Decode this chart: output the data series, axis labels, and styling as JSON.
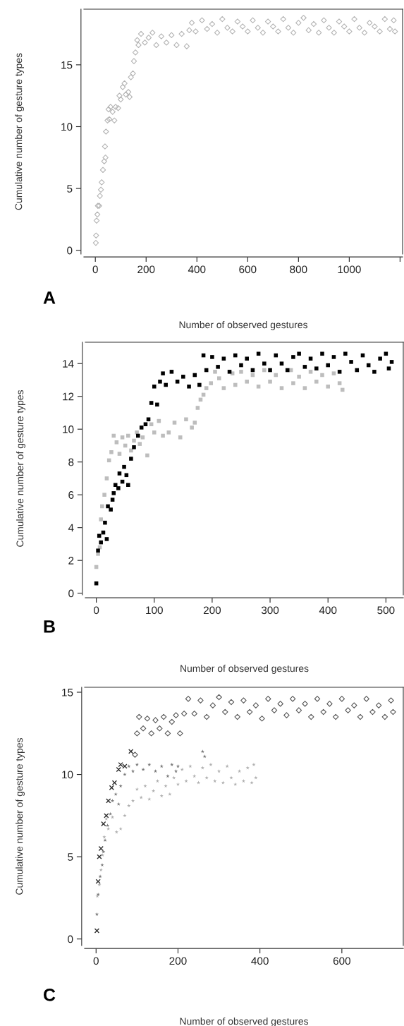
{
  "chart_data": [
    {
      "type": "scatter",
      "xlabel": "Number of observed gestures",
      "ylabel": "Cumulative number of gesture types",
      "annotations": [
        "A"
      ],
      "xlim": [
        -45,
        1210
      ],
      "ylim": [
        -0.3,
        19.5
      ],
      "xticks": [
        0,
        200,
        400,
        600,
        800,
        1000,
        {
          "value": 1200,
          "label": null
        }
      ],
      "yticks": [
        0,
        5,
        10,
        15
      ],
      "grid": false,
      "series": [
        {
          "color": "#b4b4b4",
          "marker": "diamond",
          "x": [
            2,
            3,
            5,
            8,
            10,
            15,
            18,
            22,
            25,
            30,
            35,
            38,
            40,
            42,
            48,
            52,
            55,
            60,
            68,
            75,
            80,
            90,
            95,
            100,
            108,
            115,
            120,
            130,
            135,
            140,
            148,
            152,
            158,
            165,
            170,
            180,
            195,
            210,
            225,
            240,
            260,
            280,
            300,
            320,
            340,
            360,
            370,
            380,
            395,
            420,
            440,
            460,
            480,
            500,
            520,
            540,
            560,
            580,
            600,
            620,
            640,
            660,
            680,
            700,
            720,
            740,
            760,
            780,
            800,
            820,
            840,
            860,
            880,
            900,
            920,
            940,
            960,
            980,
            1000,
            1020,
            1040,
            1060,
            1080,
            1100,
            1120,
            1140,
            1160,
            1175,
            1180
          ],
          "values": [
            0.6,
            1.2,
            2.4,
            2.9,
            3.6,
            3.6,
            4.4,
            4.9,
            5.5,
            6.5,
            7.2,
            8.4,
            7.5,
            9.6,
            10.5,
            11.4,
            10.6,
            11.6,
            11.2,
            10.5,
            11.6,
            11.5,
            12.5,
            12.2,
            13.2,
            13.5,
            12.6,
            12.8,
            12.4,
            14,
            14.3,
            15.3,
            16,
            17,
            16.6,
            17.5,
            16.8,
            17.2,
            17.6,
            16.6,
            17.3,
            16.8,
            17.4,
            16.6,
            17.5,
            16.5,
            17.8,
            18.4,
            17.7,
            18.6,
            17.9,
            18.3,
            17.6,
            18.7,
            18,
            17.7,
            18.5,
            18.1,
            17.7,
            18.6,
            18,
            17.6,
            18.5,
            18.1,
            17.7,
            18.7,
            18,
            17.6,
            18.4,
            18.8,
            17.8,
            18.3,
            17.6,
            18.6,
            18,
            17.6,
            18.5,
            18.1,
            17.7,
            18.7,
            18,
            17.6,
            18.4,
            18.1,
            17.7,
            18.7,
            17.9,
            18.6,
            17.7
          ]
        }
      ]
    },
    {
      "type": "scatter",
      "xlabel": "Number of observed gestures",
      "ylabel": "Cumulative number of gesture types",
      "annotations": [
        "B"
      ],
      "xlim": [
        -19,
        530
      ],
      "ylim": [
        -0.1,
        15.3
      ],
      "xticks": [
        0,
        100,
        200,
        300,
        400,
        500
      ],
      "yticks": [
        0,
        2,
        4,
        6,
        8,
        10,
        12,
        14
      ],
      "grid": false,
      "series": [
        {
          "color": "#bdbdbd",
          "marker": "square",
          "x": [
            0,
            3,
            6,
            8,
            10,
            14,
            18,
            22,
            26,
            30,
            35,
            40,
            45,
            50,
            55,
            60,
            65,
            70,
            75,
            80,
            88,
            95,
            100,
            108,
            115,
            125,
            135,
            145,
            155,
            165,
            170,
            175,
            180,
            185,
            190,
            198,
            205,
            212,
            220,
            235,
            240,
            250,
            260,
            270,
            280,
            290,
            300,
            310,
            320,
            336,
            340,
            350,
            360,
            370,
            380,
            390,
            400,
            410,
            420,
            425
          ],
          "values": [
            1.6,
            2.4,
            2.8,
            4.5,
            5.3,
            6,
            7,
            8.1,
            8.6,
            9.6,
            9.2,
            8.5,
            9.5,
            9,
            9.6,
            8.7,
            9.3,
            9.8,
            9.1,
            9.5,
            8.4,
            10.3,
            9.8,
            10.5,
            9.6,
            9.8,
            10.4,
            9.5,
            10.6,
            10.1,
            10.4,
            11.3,
            11.8,
            12.1,
            12.5,
            12.8,
            13.5,
            13.1,
            12.5,
            13.4,
            12.7,
            13.5,
            12.9,
            13.3,
            12.6,
            13.6,
            12.9,
            13.3,
            12.5,
            13.6,
            12.8,
            13.2,
            12.5,
            13.5,
            12.9,
            13.3,
            12.6,
            13.4,
            12.8,
            12.4
          ]
        },
        {
          "color": "#000000",
          "marker": "square",
          "x": [
            0,
            3,
            5,
            8,
            12,
            15,
            18,
            20,
            25,
            28,
            30,
            33,
            38,
            40,
            45,
            48,
            52,
            55,
            60,
            65,
            72,
            78,
            85,
            90,
            95,
            100,
            105,
            110,
            115,
            120,
            130,
            140,
            150,
            160,
            170,
            178,
            185,
            190,
            200,
            210,
            220,
            230,
            240,
            250,
            260,
            270,
            280,
            290,
            300,
            310,
            320,
            330,
            340,
            350,
            360,
            370,
            380,
            390,
            400,
            410,
            420,
            430,
            440,
            450,
            460,
            470,
            480,
            490,
            500,
            505,
            510
          ],
          "values": [
            0.6,
            2.6,
            3.5,
            3.1,
            3.7,
            4.3,
            3.3,
            5.3,
            5.1,
            5.7,
            6.1,
            6.6,
            6.4,
            7.3,
            6.8,
            7.7,
            7.2,
            6.6,
            8.2,
            8.9,
            9.6,
            10.1,
            10.3,
            10.6,
            11.6,
            12.6,
            11.5,
            12.9,
            13.4,
            12.7,
            13.5,
            12.9,
            13.2,
            12.6,
            13.3,
            12.7,
            14.5,
            13.6,
            14.4,
            13.8,
            14.3,
            13.5,
            14.5,
            13.9,
            14.3,
            13.6,
            14.6,
            14,
            13.6,
            14.5,
            14,
            13.6,
            14.4,
            14.6,
            13.8,
            14.3,
            13.7,
            14.6,
            13.9,
            14.4,
            13.5,
            14.6,
            14.1,
            13.6,
            14.5,
            13.9,
            13.5,
            14.3,
            14.6,
            13.7,
            14.1
          ]
        }
      ]
    },
    {
      "type": "scatter",
      "xlabel": "Number of observed gestures",
      "ylabel": "Cumulative number of gesture types",
      "annotations": [
        "C"
      ],
      "xlim": [
        -28,
        750
      ],
      "ylim": [
        -0.4,
        15.3
      ],
      "xticks": [
        0,
        200,
        400,
        600
      ],
      "yticks": [
        0,
        5,
        10,
        15
      ],
      "grid": false,
      "series": [
        {
          "color": "#555555",
          "marker": "diamond",
          "x": [
            95,
            100,
            105,
            115,
            125,
            135,
            145,
            155,
            165,
            175,
            185,
            195,
            205,
            215,
            225,
            240,
            255,
            270,
            285,
            300,
            315,
            330,
            345,
            360,
            375,
            390,
            405,
            420,
            435,
            450,
            465,
            480,
            495,
            510,
            525,
            540,
            555,
            570,
            585,
            600,
            615,
            630,
            645,
            660,
            675,
            690,
            705,
            720,
            725
          ],
          "values": [
            11.2,
            12.5,
            13.5,
            12.8,
            13.4,
            12.5,
            13.3,
            12.8,
            13.5,
            12.5,
            13.2,
            13.6,
            12.5,
            13.7,
            14.6,
            13.7,
            14.5,
            13.5,
            14.2,
            14.7,
            13.8,
            14.4,
            13.5,
            14.5,
            13.8,
            14.2,
            13.4,
            14.6,
            13.9,
            14.3,
            13.6,
            14.6,
            13.9,
            14.3,
            13.5,
            14.6,
            13.8,
            14.3,
            13.5,
            14.6,
            13.9,
            14.2,
            13.5,
            14.6,
            13.8,
            14.2,
            13.5,
            14.5,
            13.8
          ]
        },
        {
          "color": "#2e2e2e",
          "marker": "cross",
          "x": [
            2,
            5,
            8,
            12,
            18,
            25,
            30,
            38,
            45,
            55,
            60,
            70,
            85
          ],
          "values": [
            0.5,
            3.5,
            5,
            5.5,
            7,
            7.5,
            8.4,
            9.2,
            9.5,
            10.3,
            10.6,
            10.5,
            11.4
          ]
        },
        {
          "color": "#7a7a7a",
          "marker": "star",
          "x": [
            2,
            5,
            10,
            15,
            18,
            22,
            28,
            35,
            40,
            48,
            55,
            60,
            70,
            80,
            90,
            100,
            115,
            130,
            145,
            160,
            175,
            185,
            195,
            200,
            260,
            265
          ],
          "values": [
            1.5,
            2.7,
            3.8,
            4.5,
            5.3,
            6,
            6.9,
            7.6,
            8.4,
            8.8,
            8.2,
            9.3,
            10,
            10.5,
            10.2,
            10.6,
            10.3,
            10.6,
            10.2,
            10.5,
            9.9,
            10.6,
            10.2,
            10.5,
            11.4,
            11.1
          ]
        },
        {
          "color": "#b0b0b0",
          "marker": "star",
          "x": [
            3,
            8,
            12,
            16,
            20,
            25,
            30,
            40,
            50,
            60,
            70,
            80,
            90,
            100,
            110,
            120,
            130,
            140,
            150,
            160,
            170,
            180,
            190,
            200,
            210,
            220,
            230,
            240,
            250,
            260,
            270,
            280,
            290,
            300,
            310,
            320,
            330,
            340,
            350,
            360,
            370,
            380,
            385,
            390
          ],
          "values": [
            2.6,
            3.3,
            4.2,
            5.1,
            6.2,
            7.3,
            6.7,
            7.4,
            6.5,
            6.7,
            7.5,
            8.1,
            8.4,
            9.1,
            8.6,
            9.3,
            8.5,
            9,
            9.6,
            8.7,
            9.3,
            8.8,
            9.8,
            9.4,
            10.3,
            9.6,
            10.5,
            9.9,
            9.5,
            10.4,
            9.8,
            10.6,
            9.6,
            10.2,
            9.5,
            10.5,
            9.8,
            9.4,
            10.2,
            9.6,
            10.4,
            9.5,
            10.6,
            9.8
          ]
        }
      ]
    }
  ]
}
